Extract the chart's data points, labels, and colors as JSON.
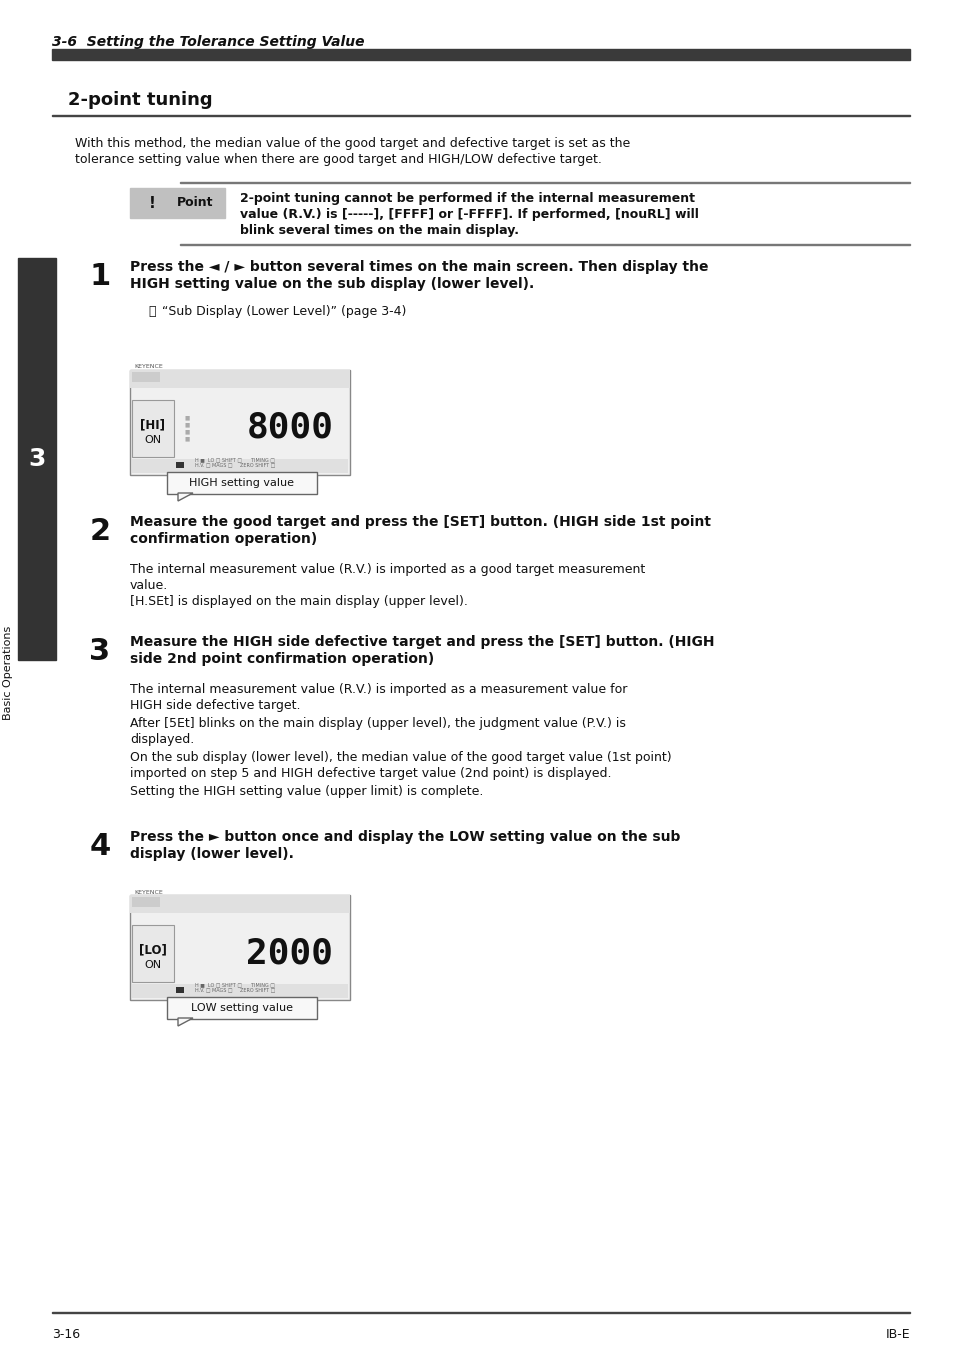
{
  "bg_color": "#ffffff",
  "header_italic_text": "3-6  Setting the Tolerance Setting Value",
  "header_bar_color": "#3a3a3a",
  "section_title": "2-point tuning",
  "section_underline_color": "#333333",
  "intro_text_line1": "With this method, the median value of the good target and defective target is set as the",
  "intro_text_line2": "tolerance setting value when there are good target and HIGH/LOW defective target.",
  "point_label": "Point",
  "point_icon": "!",
  "point_line1": "2-point tuning cannot be performed if the internal measurement",
  "point_line2": "value (R.V.) is [-----], [FFFF] or [-FFFF]. If performed, [nouRL] will",
  "point_line3": "blink several times on the main display.",
  "sidebar_color": "#333333",
  "sidebar_label": "3",
  "sidebar_text": "Basic Operations",
  "step1_num": "1",
  "step1_line1": "Press the ◄ / ► button several times on the main screen. Then display the",
  "step1_line2": "HIGH setting value on the sub display (lower level).",
  "step1_ref": "“Sub Display (Lower Level)” (page 3-4)",
  "step2_num": "2",
  "step2_line1": "Measure the good target and press the [SET] button. (HIGH side 1st point",
  "step2_line2": "confirmation operation)",
  "step2_text1_line1": "The internal measurement value (R.V.) is imported as a good target measurement",
  "step2_text1_line2": "value.",
  "step2_text2": "[H.SEt] is displayed on the main display (upper level).",
  "step3_num": "3",
  "step3_line1": "Measure the HIGH side defective target and press the [SET] button. (HIGH",
  "step3_line2": "side 2nd point confirmation operation)",
  "step3_text1_line1": "The internal measurement value (R.V.) is imported as a measurement value for",
  "step3_text1_line2": "HIGH side defective target.",
  "step3_text2_line1": "After [5Et] blinks on the main display (upper level), the judgment value (P.V.) is",
  "step3_text2_line2": "displayed.",
  "step3_text3_line1": "On the sub display (lower level), the median value of the good target value (1st point)",
  "step3_text3_line2": "imported on step 5 and HIGH defective target value (2nd point) is displayed.",
  "step3_text4": "Setting the HIGH setting value (upper limit) is complete.",
  "step4_num": "4",
  "step4_line1": "Press the ► button once and display the LOW setting value on the sub",
  "step4_line2": "display (lower level).",
  "footer_left": "3-16",
  "footer_right": "IB-E"
}
